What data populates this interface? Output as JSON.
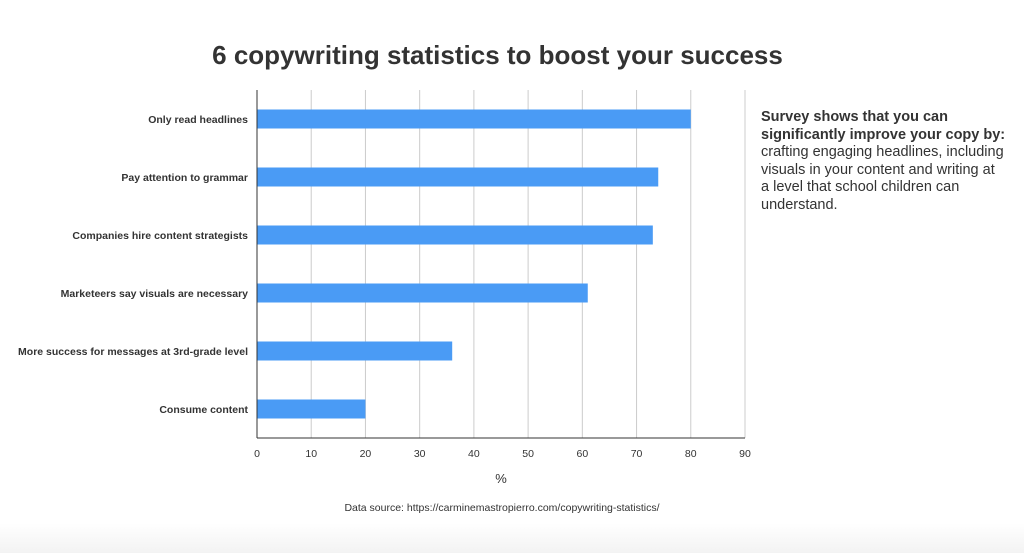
{
  "chart_data": {
    "type": "bar",
    "orientation": "horizontal",
    "title": "6 copywriting statistics to boost your success",
    "categories": [
      "Only read headlines",
      "Pay attention to grammar",
      "Companies hire content strategists",
      "Marketeers say visuals are necessary",
      "More success for messages at 3rd-grade level",
      "Consume content"
    ],
    "values": [
      80,
      74,
      73,
      61,
      36,
      20
    ],
    "xlabel": "%",
    "ylabel": "",
    "xlim": [
      0,
      90
    ],
    "xticks": [
      "0",
      "10",
      "20",
      "30",
      "40",
      "50",
      "60",
      "70",
      "80",
      "90"
    ],
    "grid": true,
    "legend": "none",
    "bar_color": "#4A9BF5"
  },
  "side_note": {
    "heading": "Survey shows that you can significantly improve your copy by:",
    "body": "crafting engaging headlines, including visuals in your content and writing at a level that school children can understand."
  },
  "footer": {
    "source": "Data source: https://carminemastropierro.com/copywriting-statistics/"
  }
}
